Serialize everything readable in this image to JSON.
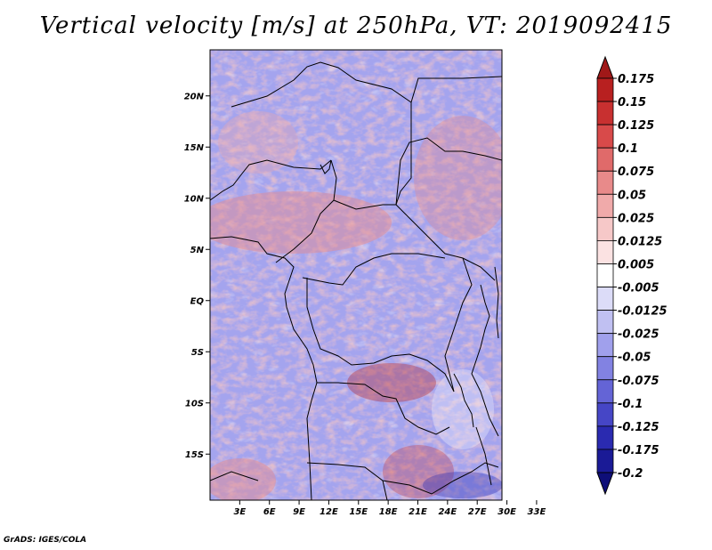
{
  "title": "Vertical velocity [m/s] at 250hPa, VT: 2019092415",
  "map": {
    "lat_range": [
      -19.5,
      24.5
    ],
    "lon_range": [
      0,
      29.5
    ],
    "lat_ticks": [
      {
        "value": 20,
        "label": "20N"
      },
      {
        "value": 15,
        "label": "15N"
      },
      {
        "value": 10,
        "label": "10N"
      },
      {
        "value": 5,
        "label": "5N"
      },
      {
        "value": 0,
        "label": "EQ"
      },
      {
        "value": -5,
        "label": "5S"
      },
      {
        "value": -10,
        "label": "10S"
      },
      {
        "value": -15,
        "label": "15S"
      }
    ],
    "lon_ticks": [
      {
        "value": 3,
        "label": "3E"
      },
      {
        "value": 6,
        "label": "6E"
      },
      {
        "value": 9,
        "label": "9E"
      },
      {
        "value": 12,
        "label": "12E"
      },
      {
        "value": 15,
        "label": "15E"
      },
      {
        "value": 18,
        "label": "18E"
      },
      {
        "value": 21,
        "label": "21E"
      },
      {
        "value": 24,
        "label": "24E"
      },
      {
        "value": 27,
        "label": "27E"
      },
      {
        "value": 30,
        "label": "30E"
      },
      {
        "value": 33,
        "label": "33E"
      }
    ]
  },
  "colorbar": {
    "levels": [
      "0.175",
      "0.15",
      "0.125",
      "0.1",
      "0.075",
      "0.05",
      "0.025",
      "0.0125",
      "0.005",
      "-0.005",
      "-0.0125",
      "-0.025",
      "-0.05",
      "-0.075",
      "-0.1",
      "-0.125",
      "-0.175",
      "-0.2"
    ],
    "colors": [
      "#a01818",
      "#b82020",
      "#c83030",
      "#d84a4a",
      "#e06a6a",
      "#e88a8a",
      "#f0aaaa",
      "#f6c8c8",
      "#fbe2e2",
      "#ffffff",
      "#dcdcf8",
      "#c0c0f2",
      "#a0a0ec",
      "#8282e2",
      "#6464d6",
      "#4646c6",
      "#2a2ab0",
      "#1a1a96",
      "#0e0e78"
    ]
  },
  "credit": "GrADS: IGES/COLA"
}
